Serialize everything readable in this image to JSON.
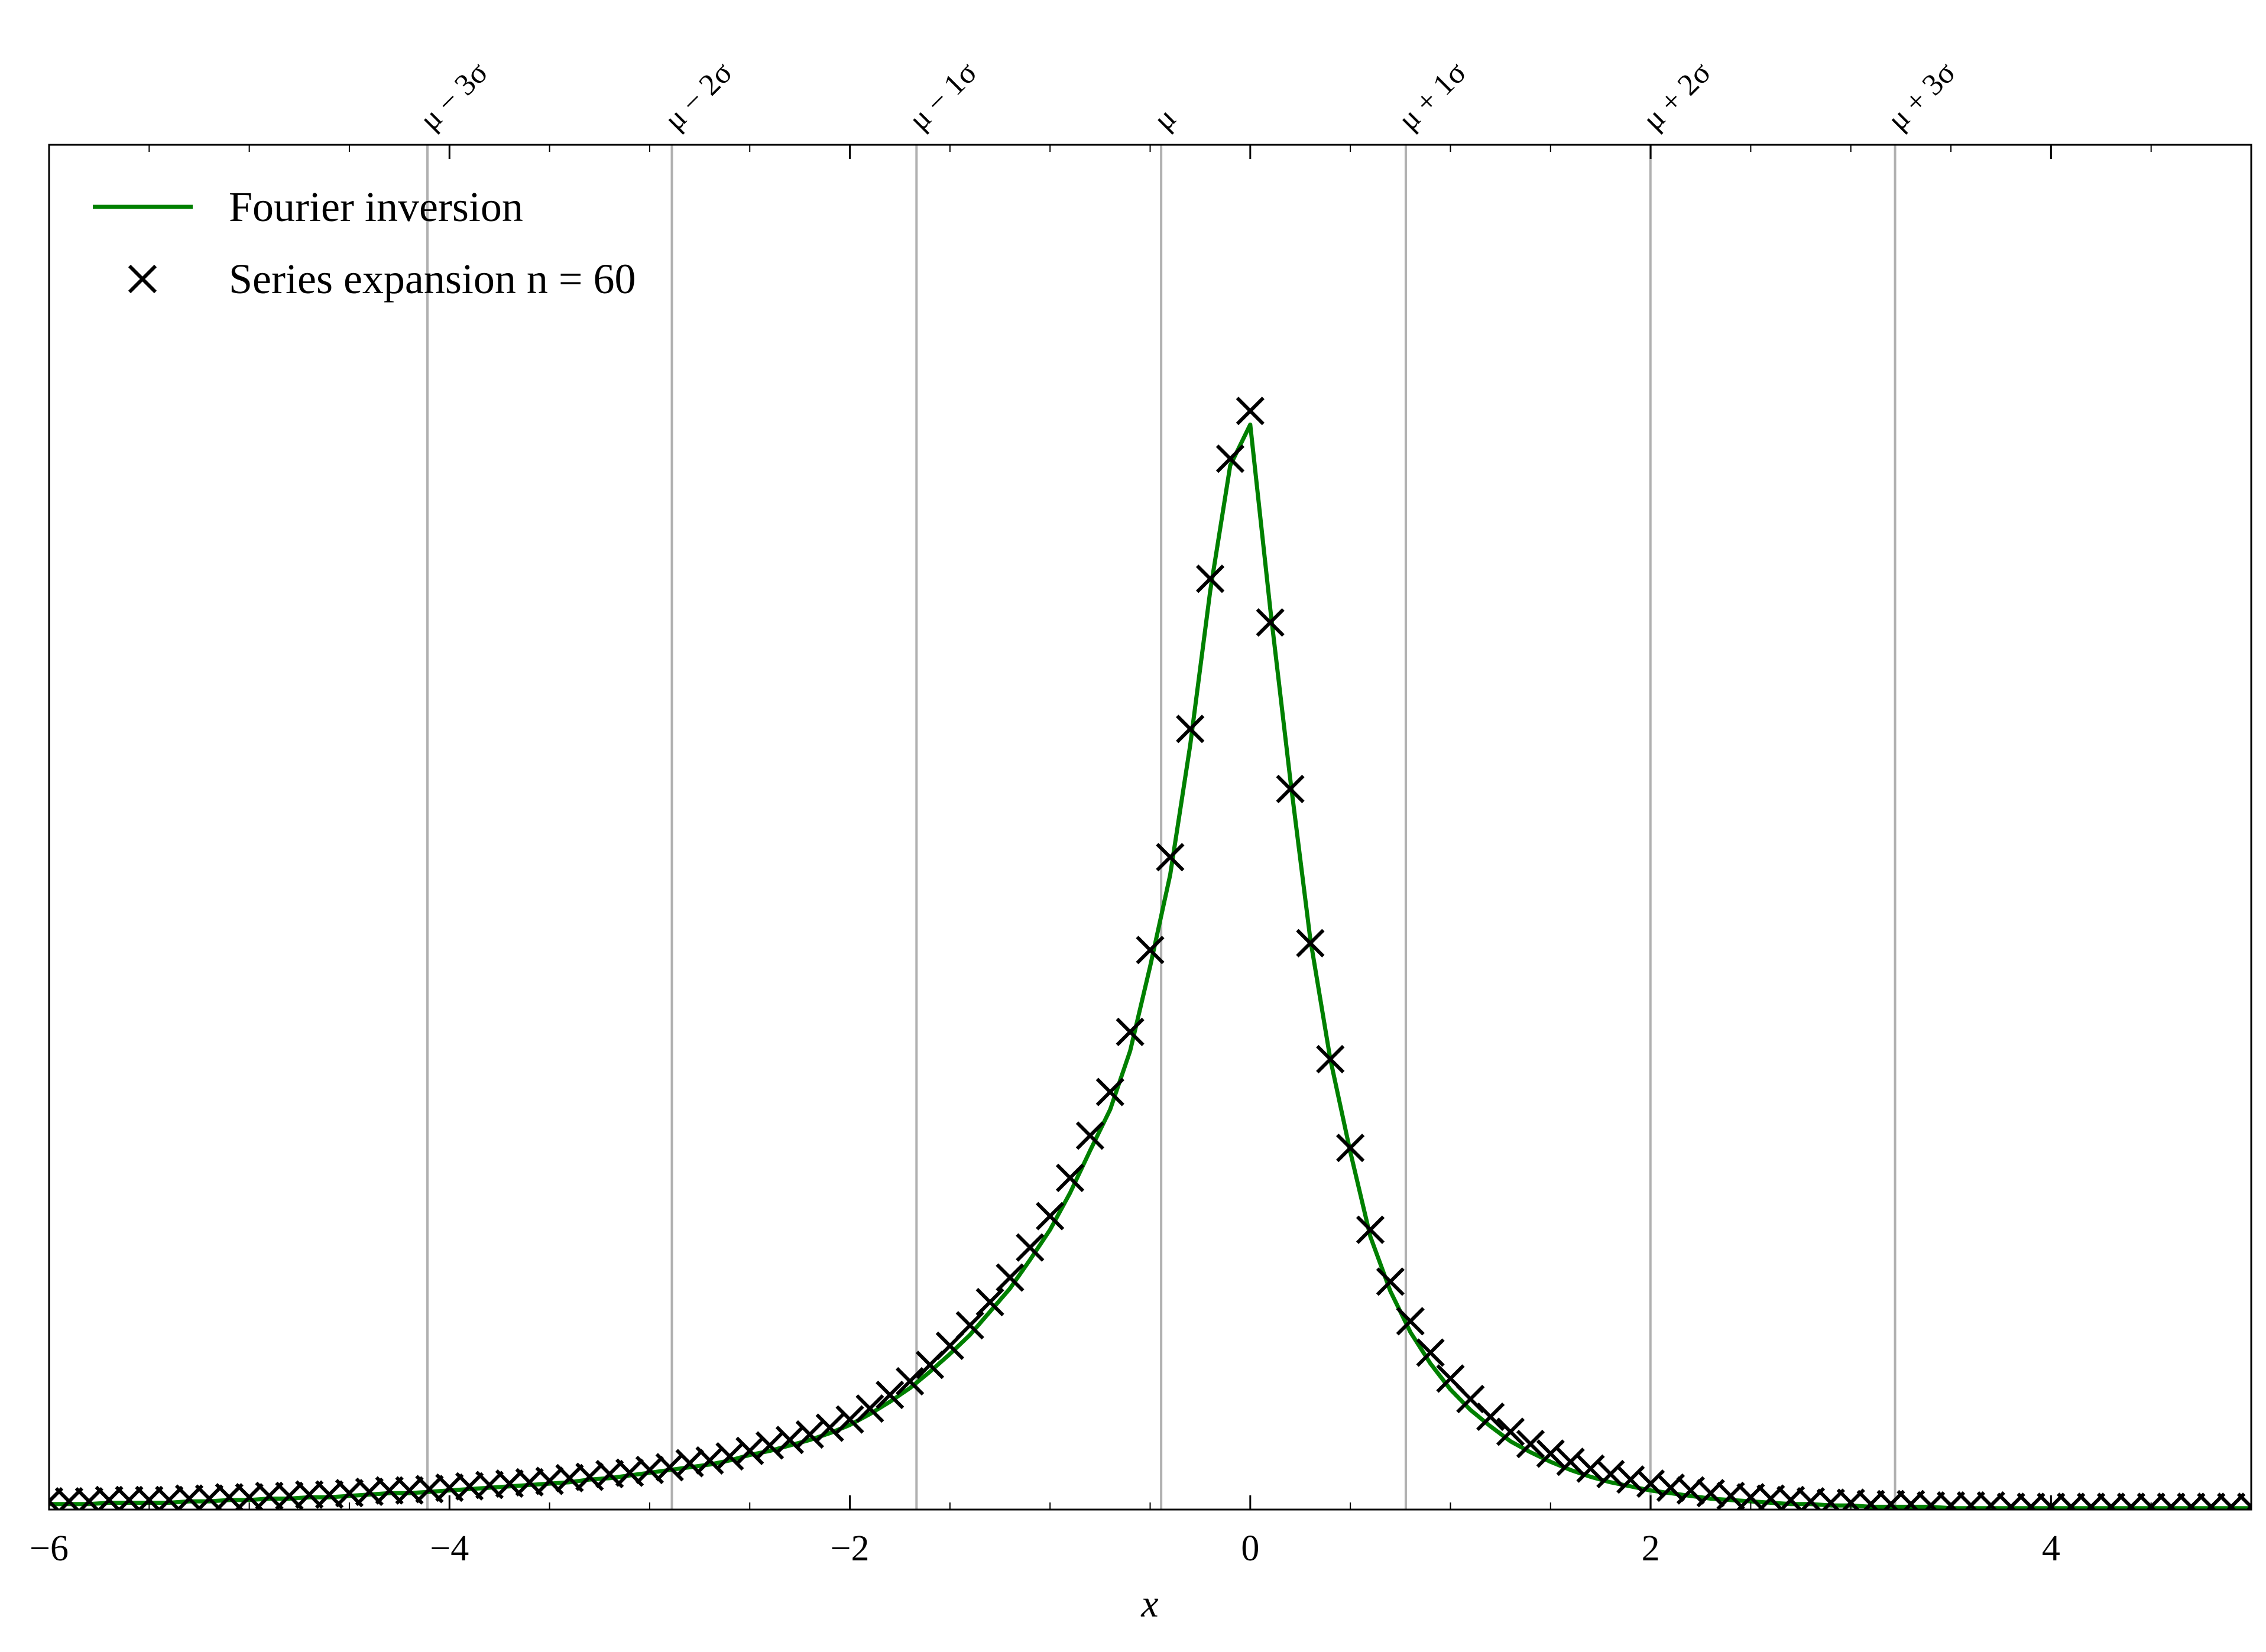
{
  "chart_data": {
    "type": "line",
    "xlabel": "x",
    "xlim": [
      -6,
      5
    ],
    "ylim": [
      0,
      1
    ],
    "xticks": [
      {
        "value": -6,
        "label": "−6"
      },
      {
        "value": -4,
        "label": "−4"
      },
      {
        "value": -2,
        "label": "−2"
      },
      0,
      2,
      4
    ],
    "vlines": [
      {
        "value": -4.11,
        "label": "μ − 3σ"
      },
      {
        "value": -2.889,
        "label": "μ − 2σ"
      },
      {
        "value": -1.667,
        "label": "μ − 1σ"
      },
      {
        "value": -0.445,
        "label": "μ"
      },
      {
        "value": 0.777,
        "label": "μ + 1σ"
      },
      {
        "value": 1.999,
        "label": "μ + 2σ"
      },
      {
        "value": 3.221,
        "label": "μ + 3σ"
      }
    ],
    "vline_color": "#b0b0b0",
    "legend": "upper left",
    "x": [
      -6.0,
      -5.9,
      -5.8,
      -5.7,
      -5.6,
      -5.5,
      -5.4,
      -5.3,
      -5.2,
      -5.1,
      -5.0,
      -4.9,
      -4.8,
      -4.7,
      -4.6,
      -4.5,
      -4.4,
      -4.3,
      -4.2,
      -4.1,
      -4.0,
      -3.9,
      -3.8,
      -3.7,
      -3.6,
      -3.5,
      -3.4,
      -3.3,
      -3.2,
      -3.1,
      -3.0,
      -2.9,
      -2.8,
      -2.7,
      -2.6,
      -2.5,
      -2.4,
      -2.3,
      -2.2,
      -2.1,
      -2.0,
      -1.9,
      -1.8,
      -1.7,
      -1.6,
      -1.5,
      -1.4,
      -1.3,
      -1.2,
      -1.1,
      -1.0,
      -0.9,
      -0.8,
      -0.7,
      -0.6,
      -0.5,
      -0.4,
      -0.3,
      -0.2,
      -0.1,
      0.0,
      0.1,
      0.2,
      0.3,
      0.4,
      0.5,
      0.6,
      0.7,
      0.8,
      0.9,
      1.0,
      1.1,
      1.2,
      1.3,
      1.4,
      1.5,
      1.6,
      1.7,
      1.8,
      1.9,
      2.0,
      2.1,
      2.2,
      2.3,
      2.4,
      2.5,
      2.6,
      2.7,
      2.8,
      2.9,
      3.0,
      3.1,
      3.2,
      3.3,
      3.4,
      3.5,
      3.6,
      3.7,
      3.8,
      3.9,
      4.0,
      4.1,
      4.2,
      4.3,
      4.4,
      4.5,
      4.6,
      4.7,
      4.8,
      4.9,
      5.0
    ],
    "series": [
      {
        "name": "Fourier inversion",
        "color": "#008000",
        "style": "line",
        "values": [
          0.004,
          0.004,
          0.004,
          0.005,
          0.005,
          0.005,
          0.005,
          0.006,
          0.006,
          0.007,
          0.007,
          0.008,
          0.008,
          0.009,
          0.009,
          0.01,
          0.011,
          0.012,
          0.012,
          0.013,
          0.014,
          0.015,
          0.016,
          0.017,
          0.018,
          0.019,
          0.02,
          0.022,
          0.023,
          0.025,
          0.027,
          0.029,
          0.031,
          0.033,
          0.036,
          0.04,
          0.043,
          0.047,
          0.051,
          0.056,
          0.062,
          0.07,
          0.079,
          0.089,
          0.101,
          0.114,
          0.128,
          0.145,
          0.162,
          0.183,
          0.205,
          0.232,
          0.263,
          0.293,
          0.336,
          0.398,
          0.465,
          0.56,
          0.673,
          0.765,
          0.795,
          0.66,
          0.535,
          0.418,
          0.33,
          0.262,
          0.2,
          0.16,
          0.13,
          0.107,
          0.088,
          0.073,
          0.061,
          0.05,
          0.042,
          0.035,
          0.029,
          0.024,
          0.02,
          0.017,
          0.014,
          0.012,
          0.01,
          0.008,
          0.007,
          0.006,
          0.005,
          0.004,
          0.004,
          0.003,
          0.003,
          0.002,
          0.002,
          0.002,
          0.002,
          0.001,
          0.001,
          0.001,
          0.001,
          0.001,
          0.001,
          0.001,
          0.001,
          0.001,
          0.001,
          0.001,
          0.001,
          0.001,
          0.001,
          0.001,
          0.001
        ]
      },
      {
        "name": "Series expansion n = 60",
        "color": "#000000",
        "style": "x",
        "values": [
          0.006,
          0.006,
          0.006,
          0.007,
          0.007,
          0.007,
          0.007,
          0.008,
          0.008,
          0.009,
          0.009,
          0.01,
          0.01,
          0.011,
          0.011,
          0.012,
          0.013,
          0.014,
          0.014,
          0.015,
          0.016,
          0.017,
          0.018,
          0.019,
          0.02,
          0.021,
          0.023,
          0.024,
          0.026,
          0.027,
          0.029,
          0.031,
          0.034,
          0.036,
          0.039,
          0.043,
          0.047,
          0.051,
          0.055,
          0.06,
          0.066,
          0.074,
          0.084,
          0.094,
          0.106,
          0.12,
          0.135,
          0.152,
          0.17,
          0.192,
          0.215,
          0.243,
          0.274,
          0.306,
          0.35,
          0.41,
          0.478,
          0.572,
          0.682,
          0.77,
          0.805,
          0.65,
          0.528,
          0.415,
          0.33,
          0.265,
          0.205,
          0.167,
          0.138,
          0.115,
          0.096,
          0.081,
          0.068,
          0.057,
          0.048,
          0.041,
          0.035,
          0.03,
          0.026,
          0.022,
          0.019,
          0.016,
          0.014,
          0.012,
          0.01,
          0.009,
          0.008,
          0.007,
          0.006,
          0.005,
          0.005,
          0.004,
          0.004,
          0.004,
          0.003,
          0.003,
          0.003,
          0.003,
          0.002,
          0.002,
          0.002,
          0.002,
          0.002,
          0.002,
          0.002,
          0.002,
          0.002,
          0.002,
          0.002,
          0.002,
          0.002
        ]
      }
    ]
  }
}
